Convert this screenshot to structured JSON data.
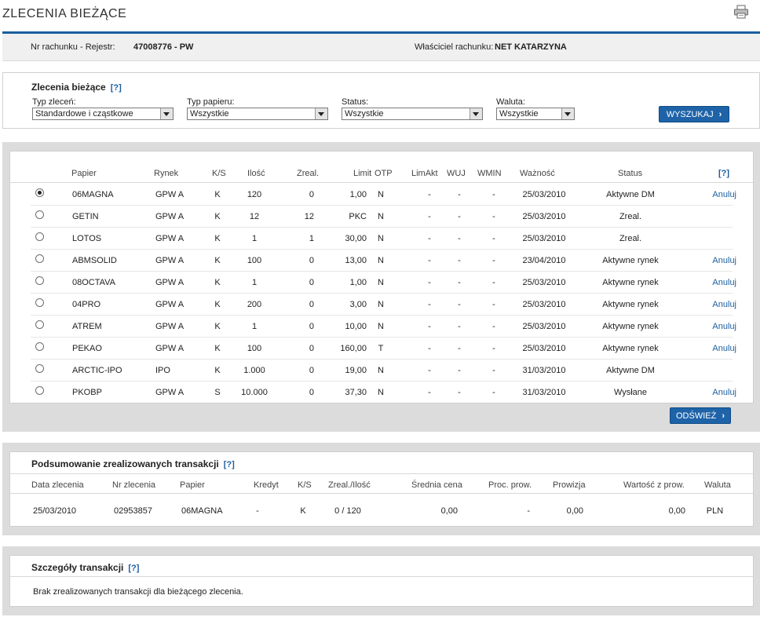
{
  "page": {
    "title": "ZLECENIA BIEŻĄCE",
    "print_icon": "printer-icon"
  },
  "account": {
    "number_label": "Nr rachunku - Rejestr:",
    "number_value": "47008776 - PW",
    "owner_label": "Właściciel rachunku:",
    "owner_value": "NET KATARZYNA"
  },
  "filters": {
    "title": "Zlecenia bieżące",
    "help": "[?]",
    "order_type": {
      "label": "Typ zleceń:",
      "value": "Standardowe i cząstkowe"
    },
    "paper_type": {
      "label": "Typ papieru:",
      "value": "Wszystkie"
    },
    "status": {
      "label": "Status:",
      "value": "Wszystkie"
    },
    "currency": {
      "label": "Waluta:",
      "value": "Wszystkie"
    },
    "search_button": "WYSZUKAJ"
  },
  "orders": {
    "headers": [
      "Papier",
      "Rynek",
      "K/S",
      "Ilość",
      "Zreal.",
      "Limit",
      "OTP",
      "LimAkt",
      "WUJ",
      "WMIN",
      "Ważność",
      "Status",
      "[?]"
    ],
    "rows": [
      {
        "selected": true,
        "papier": "06MAGNA",
        "rynek": "GPW A",
        "ks": "K",
        "ilosc": "120",
        "zreal": "0",
        "limit": "1,00",
        "otp": "N",
        "limakt": "-",
        "wuj": "-",
        "wmin": "-",
        "waznosc": "25/03/2010",
        "status": "Aktywne DM",
        "action": "Anuluj"
      },
      {
        "selected": false,
        "papier": "GETIN",
        "rynek": "GPW A",
        "ks": "K",
        "ilosc": "12",
        "zreal": "12",
        "limit": "PKC",
        "otp": "N",
        "limakt": "-",
        "wuj": "-",
        "wmin": "-",
        "waznosc": "25/03/2010",
        "status": "Zreal.",
        "action": ""
      },
      {
        "selected": false,
        "papier": "LOTOS",
        "rynek": "GPW A",
        "ks": "K",
        "ilosc": "1",
        "zreal": "1",
        "limit": "30,00",
        "otp": "N",
        "limakt": "-",
        "wuj": "-",
        "wmin": "-",
        "waznosc": "25/03/2010",
        "status": "Zreal.",
        "action": ""
      },
      {
        "selected": false,
        "papier": "ABMSOLID",
        "rynek": "GPW A",
        "ks": "K",
        "ilosc": "100",
        "zreal": "0",
        "limit": "13,00",
        "otp": "N",
        "limakt": "-",
        "wuj": "-",
        "wmin": "-",
        "waznosc": "23/04/2010",
        "status": "Aktywne rynek",
        "action": "Anuluj"
      },
      {
        "selected": false,
        "papier": "08OCTAVA",
        "rynek": "GPW A",
        "ks": "K",
        "ilosc": "1",
        "zreal": "0",
        "limit": "1,00",
        "otp": "N",
        "limakt": "-",
        "wuj": "-",
        "wmin": "-",
        "waznosc": "25/03/2010",
        "status": "Aktywne rynek",
        "action": "Anuluj"
      },
      {
        "selected": false,
        "papier": "04PRO",
        "rynek": "GPW A",
        "ks": "K",
        "ilosc": "200",
        "zreal": "0",
        "limit": "3,00",
        "otp": "N",
        "limakt": "-",
        "wuj": "-",
        "wmin": "-",
        "waznosc": "25/03/2010",
        "status": "Aktywne rynek",
        "action": "Anuluj"
      },
      {
        "selected": false,
        "papier": "ATREM",
        "rynek": "GPW A",
        "ks": "K",
        "ilosc": "1",
        "zreal": "0",
        "limit": "10,00",
        "otp": "N",
        "limakt": "-",
        "wuj": "-",
        "wmin": "-",
        "waznosc": "25/03/2010",
        "status": "Aktywne rynek",
        "action": "Anuluj"
      },
      {
        "selected": false,
        "papier": "PEKAO",
        "rynek": "GPW A",
        "ks": "K",
        "ilosc": "100",
        "zreal": "0",
        "limit": "160,00",
        "otp": "T",
        "limakt": "-",
        "wuj": "-",
        "wmin": "-",
        "waznosc": "25/03/2010",
        "status": "Aktywne rynek",
        "action": "Anuluj"
      },
      {
        "selected": false,
        "papier": "ARCTIC-IPO",
        "rynek": "IPO",
        "ks": "K",
        "ilosc": "1.000",
        "zreal": "0",
        "limit": "19,00",
        "otp": "N",
        "limakt": "-",
        "wuj": "-",
        "wmin": "-",
        "waznosc": "31/03/2010",
        "status": "Aktywne DM",
        "action": ""
      },
      {
        "selected": false,
        "papier": "PKOBP",
        "rynek": "GPW A",
        "ks": "S",
        "ilosc": "10.000",
        "zreal": "0",
        "limit": "37,30",
        "otp": "N",
        "limakt": "-",
        "wuj": "-",
        "wmin": "-",
        "waznosc": "31/03/2010",
        "status": "Wysłane",
        "action": "Anuluj"
      }
    ],
    "refresh_button": "ODŚWIEŻ"
  },
  "summary": {
    "title": "Podsumowanie zrealizowanych transakcji",
    "help": "[?]",
    "headers": [
      "Data zlecenia",
      "Nr zlecenia",
      "Papier",
      "Kredyt",
      "K/S",
      "Zreal./Ilość",
      "Średnia cena",
      "Proc. prow.",
      "Prowizja",
      "Wartość z prow.",
      "Waluta"
    ],
    "row": [
      "25/03/2010",
      "02953857",
      "06MAGNA",
      "-",
      "K",
      "0 / 120",
      "0,00",
      "-",
      "0,00",
      "0,00",
      "PLN"
    ]
  },
  "details": {
    "title": "Szczegóły transakcji",
    "help": "[?]",
    "message": "Brak zrealizowanych transakcji dla bieżącego zlecenia."
  }
}
